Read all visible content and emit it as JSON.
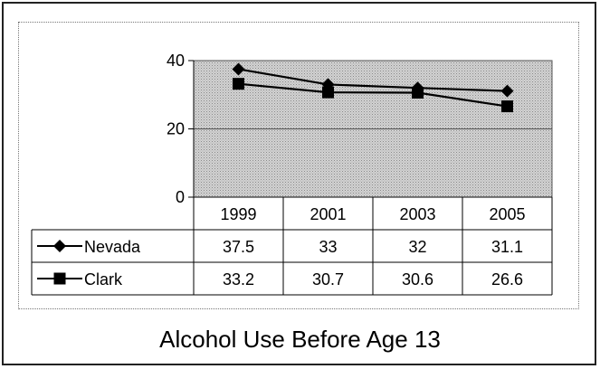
{
  "chart_data": {
    "type": "line",
    "title": "Alcohol Use Before Age 13",
    "categories": [
      "1999",
      "2001",
      "2003",
      "2005"
    ],
    "series": [
      {
        "name": "Nevada",
        "values": [
          37.5,
          33,
          32,
          31.1
        ],
        "marker": "diamond"
      },
      {
        "name": "Clark",
        "values": [
          33.2,
          30.7,
          30.6,
          26.6
        ],
        "marker": "square"
      }
    ],
    "ylim": [
      0,
      40
    ],
    "yticks": [
      0,
      20,
      40
    ],
    "grid": true,
    "data_table": true,
    "plot_fill": "#c9c9c9",
    "line_color": "#000000"
  }
}
